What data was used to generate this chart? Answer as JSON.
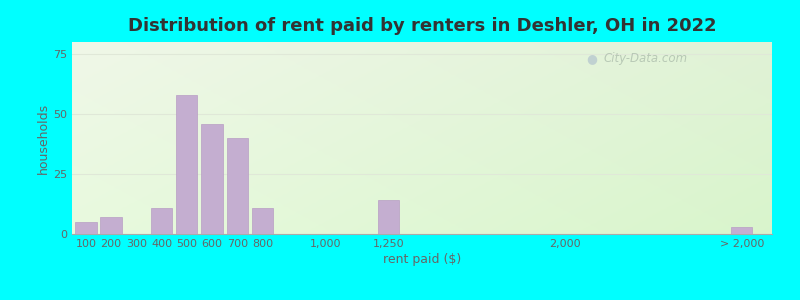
{
  "title": "Distribution of rent paid by renters in Deshler, OH in 2022",
  "xlabel": "rent paid ($)",
  "ylabel": "households",
  "bar_color": "#c4aed0",
  "bar_edgecolor": "#b89ec4",
  "outer_background": "#00ffff",
  "categories": [
    "100",
    "200",
    "300",
    "400",
    "500",
    "600",
    "700",
    "800",
    "1,000",
    "1,250",
    "2,000",
    "> 2,000"
  ],
  "values": [
    5,
    7,
    0,
    11,
    58,
    46,
    40,
    11,
    0,
    14,
    0,
    3
  ],
  "yticks": [
    0,
    25,
    50,
    75
  ],
  "ylim": [
    0,
    80
  ],
  "title_fontsize": 13,
  "axis_label_fontsize": 9,
  "tick_fontsize": 8,
  "watermark": "City-Data.com",
  "grid_color": "#e0e8d8",
  "x_positions": [
    0,
    1,
    2,
    3,
    4,
    5,
    6,
    7,
    9.5,
    12,
    19,
    26
  ],
  "bar_width": 0.85,
  "xlim_left": -0.55,
  "xlim_right": 27.2
}
